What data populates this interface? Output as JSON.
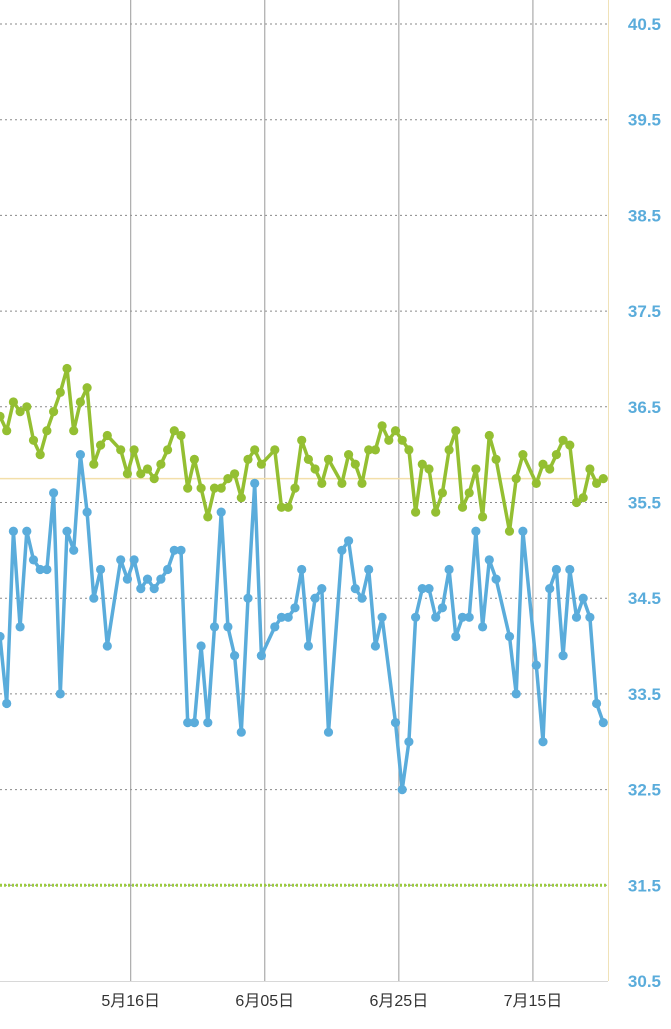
{
  "chart_data": {
    "type": "line",
    "title": "",
    "xlabel": "",
    "ylabel": "",
    "ylim": [
      30.5,
      40.5
    ],
    "grid": true,
    "y_ticks": [
      "40.5",
      "39.5",
      "38.5",
      "37.5",
      "36.5",
      "35.5",
      "34.5",
      "33.5",
      "32.5",
      "31.5",
      "30.5"
    ],
    "x_ticks": [
      {
        "label": "5月16日",
        "day": 19.5
      },
      {
        "label": "6月05日",
        "day": 39.5
      },
      {
        "label": "6月25日",
        "day": 59.5
      },
      {
        "label": "7月15日",
        "day": 79.5
      }
    ],
    "reference_lines": [
      {
        "value": 35.75,
        "color": "#f3dfaa",
        "style": "solid"
      },
      {
        "value": 31.5,
        "color": "#9ccb3f",
        "style": "dotted"
      }
    ],
    "series": [
      {
        "color": "#94bf32",
        "points": [
          [
            0,
            36.4
          ],
          [
            1,
            36.25
          ],
          [
            2,
            36.55
          ],
          [
            3,
            36.45
          ],
          [
            4,
            36.5
          ],
          [
            5,
            36.15
          ],
          [
            6,
            36.0
          ],
          [
            7,
            36.25
          ],
          [
            8,
            36.45
          ],
          [
            9,
            36.65
          ],
          [
            10,
            36.9
          ],
          [
            11,
            36.25
          ],
          [
            12,
            36.55
          ],
          [
            13,
            36.7
          ],
          [
            14,
            35.9
          ],
          [
            15,
            36.1
          ],
          [
            16,
            36.2
          ],
          [
            18,
            36.05
          ],
          [
            19,
            35.8
          ],
          [
            20,
            36.05
          ],
          [
            21,
            35.8
          ],
          [
            22,
            35.85
          ],
          [
            23,
            35.75
          ],
          [
            24,
            35.9
          ],
          [
            25,
            36.05
          ],
          [
            26,
            36.25
          ],
          [
            27,
            36.2
          ],
          [
            28,
            35.65
          ],
          [
            29,
            35.95
          ],
          [
            30,
            35.65
          ],
          [
            31,
            35.35
          ],
          [
            32,
            35.65
          ],
          [
            33,
            35.65
          ],
          [
            34,
            35.75
          ],
          [
            35,
            35.8
          ],
          [
            36,
            35.55
          ],
          [
            37,
            35.95
          ],
          [
            38,
            36.05
          ],
          [
            39,
            35.9
          ],
          [
            41,
            36.05
          ],
          [
            42,
            35.45
          ],
          [
            43,
            35.45
          ],
          [
            44,
            35.65
          ],
          [
            45,
            36.15
          ],
          [
            46,
            35.95
          ],
          [
            47,
            35.85
          ],
          [
            48,
            35.7
          ],
          [
            49,
            35.95
          ],
          [
            51,
            35.7
          ],
          [
            52,
            36.0
          ],
          [
            53,
            35.9
          ],
          [
            54,
            35.7
          ],
          [
            55,
            36.05
          ],
          [
            56,
            36.05
          ],
          [
            57,
            36.3
          ],
          [
            58,
            36.15
          ],
          [
            59,
            36.25
          ],
          [
            60,
            36.15
          ],
          [
            61,
            36.05
          ],
          [
            62,
            35.4
          ],
          [
            63,
            35.9
          ],
          [
            64,
            35.85
          ],
          [
            65,
            35.4
          ],
          [
            66,
            35.6
          ],
          [
            67,
            36.05
          ],
          [
            68,
            36.25
          ],
          [
            69,
            35.45
          ],
          [
            70,
            35.6
          ],
          [
            71,
            35.85
          ],
          [
            72,
            35.35
          ],
          [
            73,
            36.2
          ],
          [
            74,
            35.95
          ],
          [
            76,
            35.2
          ],
          [
            77,
            35.75
          ],
          [
            78,
            36.0
          ],
          [
            80,
            35.7
          ],
          [
            81,
            35.9
          ],
          [
            82,
            35.85
          ],
          [
            83,
            36.0
          ],
          [
            84,
            36.15
          ],
          [
            85,
            36.1
          ],
          [
            86,
            35.5
          ],
          [
            87,
            35.55
          ],
          [
            88,
            35.85
          ],
          [
            89,
            35.7
          ],
          [
            90,
            35.75
          ]
        ]
      },
      {
        "color": "#5aacdb",
        "points": [
          [
            0,
            34.1
          ],
          [
            1,
            33.4
          ],
          [
            2,
            35.2
          ],
          [
            3,
            34.2
          ],
          [
            4,
            35.2
          ],
          [
            5,
            34.9
          ],
          [
            6,
            34.8
          ],
          [
            7,
            34.8
          ],
          [
            8,
            35.6
          ],
          [
            9,
            33.5
          ],
          [
            10,
            35.2
          ],
          [
            11,
            35.0
          ],
          [
            12,
            36.0
          ],
          [
            13,
            35.4
          ],
          [
            14,
            34.5
          ],
          [
            15,
            34.8
          ],
          [
            16,
            34.0
          ],
          [
            18,
            34.9
          ],
          [
            19,
            34.7
          ],
          [
            20,
            34.9
          ],
          [
            21,
            34.6
          ],
          [
            22,
            34.7
          ],
          [
            23,
            34.6
          ],
          [
            24,
            34.7
          ],
          [
            25,
            34.8
          ],
          [
            26,
            35.0
          ],
          [
            27,
            35.0
          ],
          [
            28,
            33.2
          ],
          [
            29,
            33.2
          ],
          [
            30,
            34.0
          ],
          [
            31,
            33.2
          ],
          [
            32,
            34.2
          ],
          [
            33,
            35.4
          ],
          [
            34,
            34.2
          ],
          [
            35,
            33.9
          ],
          [
            36,
            33.1
          ],
          [
            37,
            34.5
          ],
          [
            38,
            35.7
          ],
          [
            39,
            33.9
          ],
          [
            41,
            34.2
          ],
          [
            42,
            34.3
          ],
          [
            43,
            34.3
          ],
          [
            44,
            34.4
          ],
          [
            45,
            34.8
          ],
          [
            46,
            34.0
          ],
          [
            47,
            34.5
          ],
          [
            48,
            34.6
          ],
          [
            49,
            33.1
          ],
          [
            51,
            35.0
          ],
          [
            52,
            35.1
          ],
          [
            53,
            34.6
          ],
          [
            54,
            34.5
          ],
          [
            55,
            34.8
          ],
          [
            56,
            34.0
          ],
          [
            57,
            34.3
          ],
          [
            59,
            33.2
          ],
          [
            60,
            32.5
          ],
          [
            61,
            33.0
          ],
          [
            62,
            34.3
          ],
          [
            63,
            34.6
          ],
          [
            64,
            34.6
          ],
          [
            65,
            34.3
          ],
          [
            66,
            34.4
          ],
          [
            67,
            34.8
          ],
          [
            68,
            34.1
          ],
          [
            69,
            34.3
          ],
          [
            70,
            34.3
          ],
          [
            71,
            35.2
          ],
          [
            72,
            34.2
          ],
          [
            73,
            34.9
          ],
          [
            74,
            34.7
          ],
          [
            76,
            34.1
          ],
          [
            77,
            33.5
          ],
          [
            78,
            35.2
          ],
          [
            80,
            33.8
          ],
          [
            81,
            33.0
          ],
          [
            82,
            34.6
          ],
          [
            83,
            34.8
          ],
          [
            84,
            33.9
          ],
          [
            85,
            34.8
          ],
          [
            86,
            34.3
          ],
          [
            87,
            34.5
          ],
          [
            88,
            34.3
          ],
          [
            89,
            33.4
          ],
          [
            90,
            33.2
          ]
        ]
      }
    ],
    "colors": {
      "y_axis_text": "#5aacdb",
      "grid": "#8a8a8a",
      "vertical_grid": "#9a9a9a",
      "x_tick_text": "#333333"
    }
  }
}
